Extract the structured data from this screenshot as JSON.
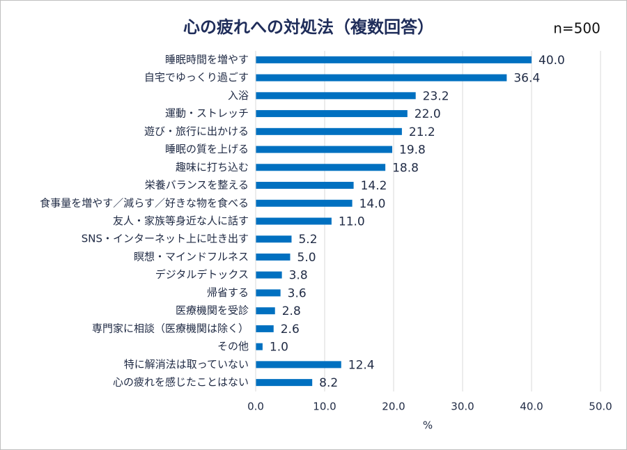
{
  "chart_data": {
    "type": "bar",
    "orientation": "horizontal",
    "title": "心の疲れへの対処法（複数回答）",
    "annotation": "n=500",
    "x_label": "%",
    "categories": [
      "睡眠時間を増やす",
      "自宅でゆっくり過ごす",
      "入浴",
      "運動・ストレッチ",
      "遊び・旅行に出かける",
      "睡眠の質を上げる",
      "趣味に打ち込む",
      "栄養バランスを整える",
      "食事量を増やす／減らす／好きな物を食べる",
      "友人・家族等身近な人に話す",
      "SNS・インターネット上に吐き出す",
      "瞑想・マインドフルネス",
      "デジタルデトックス",
      "帰省する",
      "医療機関を受診",
      "専門家に相談（医療機関は除く）",
      "その他",
      "特に解消法は取っていない",
      "心の疲れを感じたことはない"
    ],
    "values": [
      40.0,
      36.4,
      23.2,
      22.0,
      21.2,
      19.8,
      18.8,
      14.2,
      14.0,
      11.0,
      5.2,
      5.0,
      3.8,
      3.6,
      2.8,
      2.6,
      1.0,
      12.4,
      8.2
    ],
    "value_labels": [
      "40.0",
      "36.4",
      "23.2",
      "22.0",
      "21.2",
      "19.8",
      "18.8",
      "14.2",
      "14.0",
      "11.0",
      "5.2",
      "5.0",
      "3.8",
      "3.6",
      "2.8",
      "2.6",
      "1.0",
      "12.4",
      "8.2"
    ],
    "color": "#0070c0",
    "xlim": [
      0,
      50
    ],
    "xticks": [
      {
        "value": 0,
        "label": "0.0"
      },
      {
        "value": 10,
        "label": "10.0"
      },
      {
        "value": 20,
        "label": "20.0"
      },
      {
        "value": 30,
        "label": "30.0"
      },
      {
        "value": 40,
        "label": "40.0"
      },
      {
        "value": 50,
        "label": "50.0"
      }
    ],
    "grid": true
  }
}
